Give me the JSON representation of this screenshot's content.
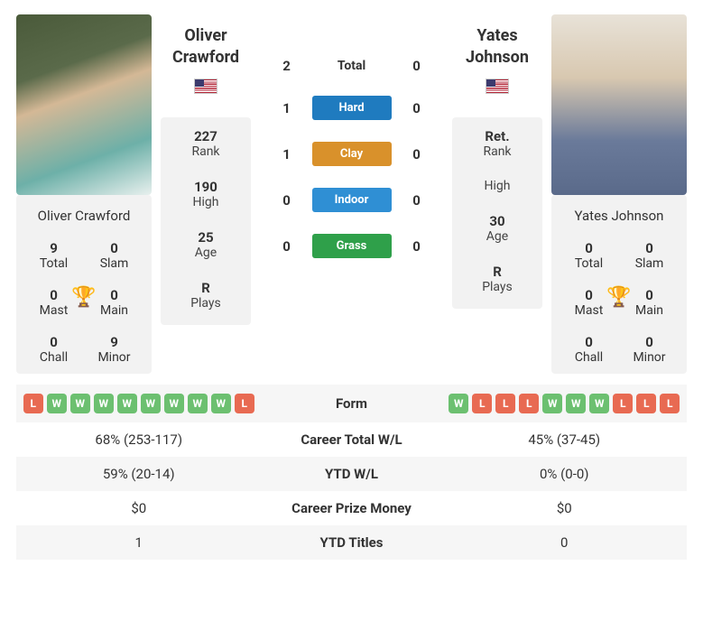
{
  "players": {
    "p1": {
      "name": "Oliver Crawford",
      "first_name": "Oliver",
      "last_name": "Crawford",
      "rank_val": "227",
      "rank_lbl": "Rank",
      "high_val": "190",
      "high_lbl": "High",
      "age_val": "25",
      "age_lbl": "Age",
      "plays_val": "R",
      "plays_lbl": "Plays",
      "titles": {
        "total_v": "9",
        "total_l": "Total",
        "slam_v": "0",
        "slam_l": "Slam",
        "mast_v": "0",
        "mast_l": "Mast",
        "main_v": "0",
        "main_l": "Main",
        "chall_v": "0",
        "chall_l": "Chall",
        "minor_v": "9",
        "minor_l": "Minor"
      },
      "form": [
        "L",
        "W",
        "W",
        "W",
        "W",
        "W",
        "W",
        "W",
        "W",
        "L"
      ]
    },
    "p2": {
      "name": "Yates Johnson",
      "first_name": "Yates",
      "last_name": "Johnson",
      "rank_val": "Ret.",
      "rank_lbl": "Rank",
      "high_val": "",
      "high_lbl": "High",
      "age_val": "30",
      "age_lbl": "Age",
      "plays_val": "R",
      "plays_lbl": "Plays",
      "titles": {
        "total_v": "0",
        "total_l": "Total",
        "slam_v": "0",
        "slam_l": "Slam",
        "mast_v": "0",
        "mast_l": "Mast",
        "main_v": "0",
        "main_l": "Main",
        "chall_v": "0",
        "chall_l": "Chall",
        "minor_v": "0",
        "minor_l": "Minor"
      },
      "form": [
        "W",
        "L",
        "L",
        "L",
        "W",
        "W",
        "W",
        "L",
        "L",
        "L"
      ]
    }
  },
  "h2h": {
    "total_label": "Total",
    "total_p1": "2",
    "total_p2": "0",
    "surfaces": [
      {
        "label": "Hard",
        "p1": "1",
        "p2": "0",
        "color": "#1f7bbf"
      },
      {
        "label": "Clay",
        "p1": "1",
        "p2": "0",
        "color": "#d9912b"
      },
      {
        "label": "Indoor",
        "p1": "0",
        "p2": "0",
        "color": "#2f8fd4"
      },
      {
        "label": "Grass",
        "p1": "0",
        "p2": "0",
        "color": "#2fa04a"
      }
    ]
  },
  "compare": {
    "form_label": "Form",
    "rows": [
      {
        "label": "Career Total W/L",
        "p1": "68% (253-117)",
        "p2": "45% (37-45)"
      },
      {
        "label": "YTD W/L",
        "p1": "59% (20-14)",
        "p2": "0% (0-0)"
      },
      {
        "label": "Career Prize Money",
        "p1": "$0",
        "p2": "$0"
      },
      {
        "label": "YTD Titles",
        "p1": "1",
        "p2": "0"
      }
    ]
  },
  "colors": {
    "win": "#6cc070",
    "loss": "#e86a52",
    "card_bg": "#f2f2f2"
  }
}
